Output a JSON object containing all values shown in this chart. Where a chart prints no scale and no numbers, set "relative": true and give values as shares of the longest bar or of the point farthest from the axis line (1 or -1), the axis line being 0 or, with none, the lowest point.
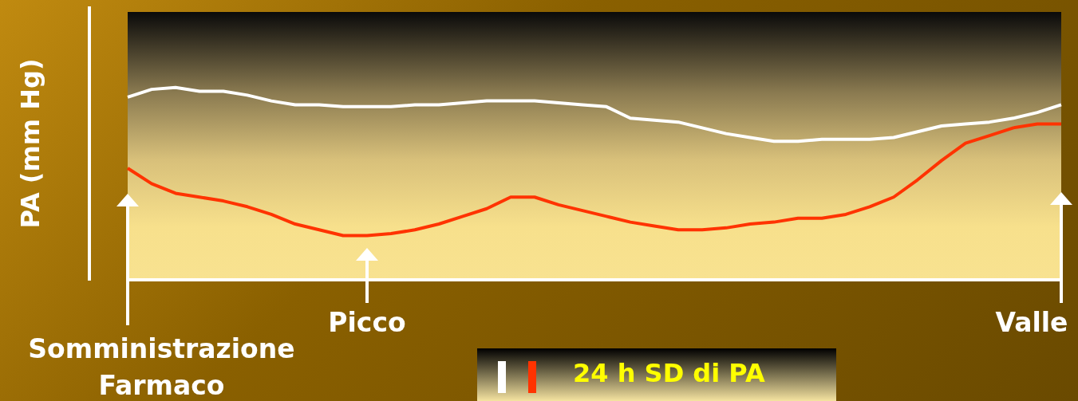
{
  "chart_data": {
    "type": "line",
    "relative": true,
    "ylabel": "PA (mm Hg)",
    "legend_title": "24 h SD di PA",
    "marker": "none",
    "line_style": "solid",
    "categories": [
      null,
      null,
      null,
      null,
      null,
      null,
      null,
      null,
      null,
      null,
      null,
      null,
      null,
      null,
      null,
      null,
      null,
      null,
      null,
      null,
      null,
      null,
      null,
      null,
      null,
      null,
      null,
      null,
      null,
      null,
      null,
      null,
      null,
      null,
      null,
      null,
      null,
      null,
      null,
      null
    ],
    "series": [
      {
        "color": "#ffffff",
        "values": [
          0.95,
          0.99,
          1,
          0.98,
          0.98,
          0.96,
          0.93,
          0.91,
          0.91,
          0.9,
          0.9,
          0.9,
          0.91,
          0.91,
          0.92,
          0.93,
          0.93,
          0.93,
          0.92,
          0.91,
          0.9,
          0.84,
          0.83,
          0.82,
          0.79,
          0.76,
          0.74,
          0.72,
          0.72,
          0.73,
          0.73,
          0.73,
          0.74,
          0.77,
          0.8,
          0.81,
          0.82,
          0.84,
          0.87,
          0.91
        ]
      },
      {
        "color": "#ff3300",
        "values": [
          0.58,
          0.5,
          0.45,
          0.43,
          0.41,
          0.38,
          0.34,
          0.29,
          0.26,
          0.23,
          0.23,
          0.24,
          0.26,
          0.29,
          0.33,
          0.37,
          0.43,
          0.43,
          0.39,
          0.36,
          0.33,
          0.3,
          0.28,
          0.26,
          0.26,
          0.27,
          0.29,
          0.3,
          0.32,
          0.32,
          0.34,
          0.38,
          0.43,
          0.52,
          0.62,
          0.71,
          0.75,
          0.79,
          0.81,
          0.81
        ]
      }
    ],
    "annotations": [
      "Somministrazione Farmaco",
      "Picco",
      "Valle"
    ]
  }
}
